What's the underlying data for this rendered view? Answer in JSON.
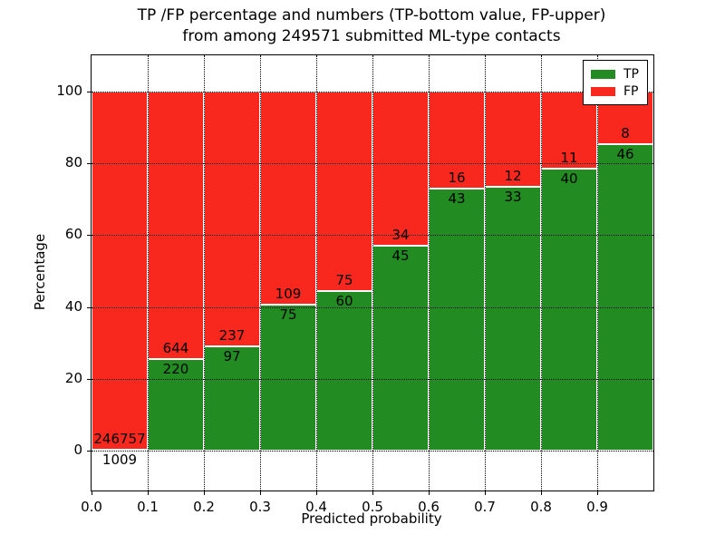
{
  "chart_data": {
    "type": "bar",
    "subtype": "stacked-percentage",
    "title_line1": "TP /FP percentage and numbers (TP-bottom value, FP-upper)",
    "title_line2": "from among 249571 submitted ML-type contacts",
    "xlabel": "Predicted probability",
    "ylabel": "Percentage",
    "xlim": [
      0.0,
      1.0
    ],
    "ylim": [
      -11,
      110
    ],
    "grid": true,
    "legend_position": "upper-right",
    "x_tick_values": [
      0.0,
      0.1,
      0.2,
      0.3,
      0.4,
      0.5,
      0.6,
      0.7,
      0.8,
      0.9
    ],
    "x_tick_labels": [
      "0.0",
      "0.1",
      "0.2",
      "0.3",
      "0.4",
      "0.5",
      "0.6",
      "0.7",
      "0.8",
      "0.9"
    ],
    "y_ticks": [
      0,
      20,
      40,
      60,
      80,
      100
    ],
    "bin_width": 0.1,
    "categories": [
      "0.0-0.1",
      "0.1-0.2",
      "0.2-0.3",
      "0.3-0.4",
      "0.4-0.5",
      "0.5-0.6",
      "0.6-0.7",
      "0.7-0.8",
      "0.8-0.9",
      "0.9-1.0"
    ],
    "series": [
      {
        "name": "TP",
        "color": "#228b22",
        "counts": [
          1009,
          220,
          97,
          75,
          60,
          45,
          43,
          33,
          40,
          46
        ]
      },
      {
        "name": "FP",
        "color": "#f8281e",
        "counts": [
          246757,
          644,
          237,
          109,
          75,
          34,
          16,
          12,
          11,
          8
        ]
      }
    ],
    "tp_percentages": [
      0.41,
      25.46,
      29.04,
      40.76,
      44.44,
      56.96,
      72.88,
      73.33,
      78.43,
      85.19
    ],
    "colors": {
      "tp": "#228b22",
      "fp": "#f8281e",
      "grid": "#000000",
      "frame": "#000000",
      "background": "#ffffff",
      "bar_edge": "#ffffff"
    }
  }
}
